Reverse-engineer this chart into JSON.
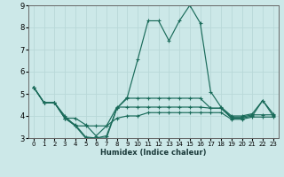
{
  "xlabel": "Humidex (Indice chaleur)",
  "bg_color": "#cce8e8",
  "grid_color": "#b8d8d8",
  "line_color": "#1a6b5a",
  "xlim": [
    -0.5,
    23.5
  ],
  "ylim": [
    3,
    9
  ],
  "xticks": [
    0,
    1,
    2,
    3,
    4,
    5,
    6,
    7,
    8,
    9,
    10,
    11,
    12,
    13,
    14,
    15,
    16,
    17,
    18,
    19,
    20,
    21,
    22,
    23
  ],
  "yticks": [
    3,
    4,
    5,
    6,
    7,
    8,
    9
  ],
  "lines": [
    {
      "x": [
        0,
        1,
        2,
        3,
        4,
        5,
        6,
        7,
        8,
        9,
        10,
        11,
        12,
        13,
        14,
        15,
        16,
        17,
        18,
        19,
        20,
        21,
        22,
        23
      ],
      "y": [
        5.3,
        4.6,
        4.6,
        3.9,
        3.6,
        3.05,
        3.0,
        3.1,
        4.35,
        4.85,
        6.55,
        8.3,
        8.3,
        7.4,
        8.3,
        9.0,
        8.2,
        5.1,
        4.4,
        4.0,
        4.0,
        4.1,
        4.7,
        4.1
      ]
    },
    {
      "x": [
        0,
        1,
        2,
        3,
        4,
        5,
        6,
        7,
        8,
        9,
        10,
        11,
        12,
        13,
        14,
        15,
        16,
        17,
        18,
        19,
        20,
        21,
        22,
        23
      ],
      "y": [
        5.3,
        4.6,
        4.6,
        4.0,
        3.55,
        3.55,
        3.55,
        3.55,
        4.4,
        4.4,
        4.4,
        4.4,
        4.4,
        4.4,
        4.4,
        4.4,
        4.4,
        4.35,
        4.35,
        3.95,
        3.95,
        4.05,
        4.05,
        4.05
      ]
    },
    {
      "x": [
        0,
        1,
        2,
        3,
        4,
        5,
        6,
        7,
        8,
        9,
        10,
        11,
        12,
        13,
        14,
        15,
        16,
        17,
        18,
        19,
        20,
        21,
        22,
        23
      ],
      "y": [
        5.3,
        4.6,
        4.6,
        3.9,
        3.9,
        3.6,
        3.1,
        3.55,
        3.9,
        4.0,
        4.0,
        4.15,
        4.15,
        4.15,
        4.15,
        4.15,
        4.15,
        4.15,
        4.15,
        3.85,
        3.85,
        3.95,
        3.95,
        3.95
      ]
    },
    {
      "x": [
        0,
        1,
        2,
        3,
        4,
        5,
        6,
        7,
        8,
        9,
        10,
        11,
        12,
        13,
        14,
        15,
        16,
        17,
        18,
        19,
        20,
        21,
        22,
        23
      ],
      "y": [
        5.3,
        4.6,
        4.6,
        3.9,
        3.55,
        3.0,
        3.0,
        3.0,
        4.35,
        4.8,
        4.8,
        4.8,
        4.8,
        4.8,
        4.8,
        4.8,
        4.8,
        4.35,
        4.35,
        3.9,
        3.9,
        4.0,
        4.7,
        4.0
      ]
    }
  ]
}
